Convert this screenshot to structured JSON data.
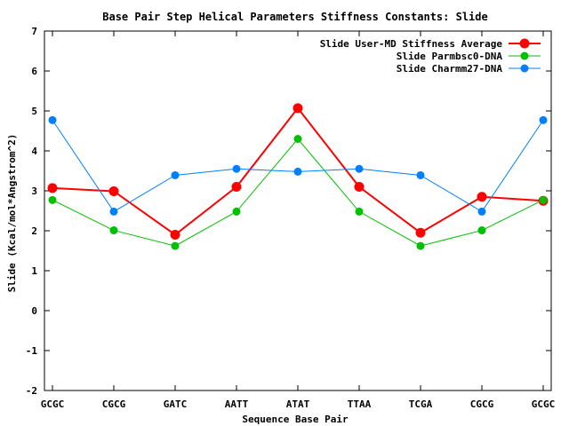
{
  "chart_data": {
    "type": "line",
    "title": "Base Pair Step Helical Parameters Stiffness Constants: Slide",
    "xlabel": "Sequence Base Pair",
    "ylabel": "Slide (Kcal/mol*Angstrom^2)",
    "categories": [
      "GCGC",
      "CGCG",
      "GATC",
      "AATT",
      "ATAT",
      "TTAA",
      "TCGA",
      "CGCG",
      "GCGC"
    ],
    "ylim": [
      -2,
      7
    ],
    "yticks": [
      "-2",
      "-1",
      "0",
      "1",
      "2",
      "3",
      "4",
      "5",
      "6",
      "7"
    ],
    "grid": false,
    "legend_position": "top-right",
    "series": [
      {
        "name": "Slide User-MD Stiffness Average",
        "color": "#ff0000",
        "values": [
          3.07,
          2.99,
          1.9,
          3.1,
          5.07,
          3.1,
          1.95,
          2.85,
          2.75
        ]
      },
      {
        "name": "Slide Parmbsc0-DNA",
        "color": "#00c000",
        "values": [
          2.77,
          2.01,
          1.62,
          2.48,
          4.3,
          2.48,
          1.62,
          2.01,
          2.77
        ]
      },
      {
        "name": "Slide Charmm27-DNA",
        "color": "#0080ff",
        "values": [
          4.77,
          2.48,
          3.39,
          3.55,
          3.48,
          3.55,
          3.39,
          2.48,
          4.77
        ]
      }
    ]
  }
}
